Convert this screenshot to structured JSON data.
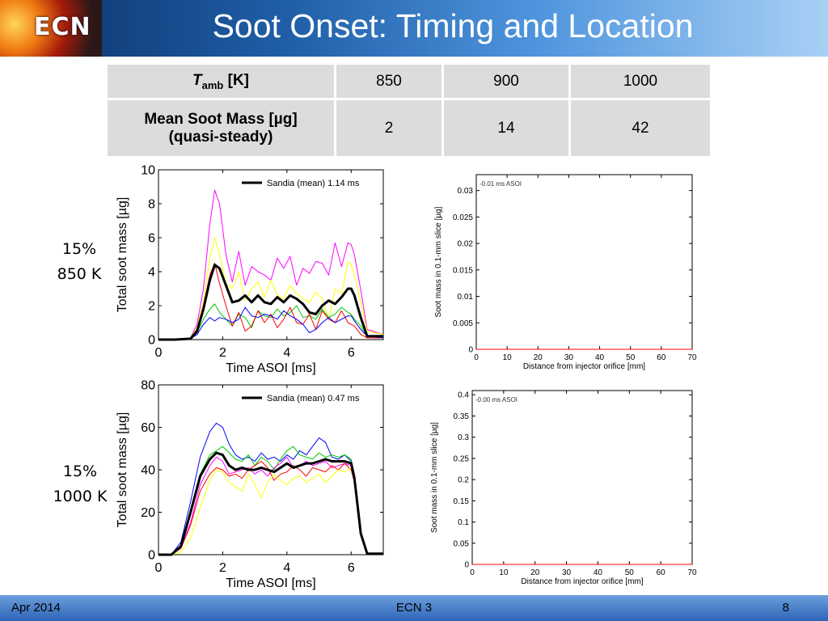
{
  "header": {
    "title": "Soot Onset: Timing and Location",
    "logo_text": "ECN"
  },
  "table": {
    "row1": {
      "label_main": "T",
      "label_sub": "amb",
      "label_unit": " [K]",
      "values": [
        "850",
        "900",
        "1000"
      ]
    },
    "row2": {
      "label_line1": "Mean Soot Mass [µg]",
      "label_line2": "(quasi-steady)",
      "values": [
        "2",
        "14",
        "42"
      ]
    }
  },
  "row_labels": [
    {
      "line1": "15%",
      "line2": "850 K"
    },
    {
      "line1": "15%",
      "line2": "1000 K"
    }
  ],
  "footer": {
    "left": "Apr 2014",
    "center": "ECN 3",
    "right": "8"
  },
  "chart_data": [
    {
      "type": "line",
      "xlabel": "Time ASOI [ms]",
      "ylabel": "Total soot mass [µg]",
      "xlim": [
        0,
        7
      ],
      "ylim": [
        0,
        10
      ],
      "xticks": [
        0,
        2,
        4,
        6
      ],
      "yticks": [
        0,
        2,
        4,
        6,
        8,
        10
      ],
      "legend": "top-right",
      "series": [
        {
          "name": "Sandia (mean) 1.14 ms",
          "color": "#000000",
          "width": 3,
          "x": [
            0,
            0.5,
            1.0,
            1.2,
            1.4,
            1.6,
            1.75,
            1.9,
            2.1,
            2.3,
            2.5,
            2.7,
            2.9,
            3.1,
            3.3,
            3.5,
            3.7,
            3.9,
            4.1,
            4.3,
            4.5,
            4.7,
            4.9,
            5.1,
            5.3,
            5.5,
            5.7,
            5.9,
            6.0,
            6.1,
            6.3,
            6.5,
            7.0
          ],
          "y": [
            0,
            0,
            0.05,
            0.5,
            1.8,
            3.5,
            4.4,
            4.2,
            3.2,
            2.2,
            2.3,
            2.6,
            2.2,
            2.6,
            2.2,
            2.1,
            2.5,
            2.2,
            2.6,
            2.4,
            2.1,
            1.6,
            1.5,
            2.0,
            2.3,
            2.1,
            2.5,
            3.0,
            3.0,
            2.6,
            1.3,
            0.2,
            0.2
          ]
        },
        {
          "color": "#ff00ff",
          "width": 1,
          "x": [
            0,
            0.5,
            1.0,
            1.2,
            1.4,
            1.6,
            1.75,
            1.9,
            2.1,
            2.3,
            2.5,
            2.7,
            2.9,
            3.1,
            3.3,
            3.5,
            3.7,
            3.9,
            4.1,
            4.3,
            4.5,
            4.7,
            4.9,
            5.1,
            5.3,
            5.5,
            5.7,
            5.9,
            6.0,
            6.1,
            6.3,
            6.5,
            7.0
          ],
          "y": [
            0,
            0,
            0.1,
            0.9,
            3.0,
            6.8,
            8.8,
            8.0,
            5.0,
            3.4,
            5.2,
            3.2,
            4.3,
            4.0,
            3.8,
            3.5,
            4.8,
            4.2,
            4.9,
            3.2,
            4.2,
            3.9,
            4.6,
            4.5,
            3.8,
            5.7,
            4.3,
            5.7,
            5.6,
            5.0,
            2.9,
            0.6,
            0.3
          ]
        },
        {
          "color": "#ffff00",
          "width": 1,
          "x": [
            0,
            0.5,
            1.0,
            1.2,
            1.4,
            1.6,
            1.75,
            1.9,
            2.1,
            2.3,
            2.5,
            2.7,
            2.9,
            3.1,
            3.3,
            3.5,
            3.7,
            3.9,
            4.1,
            4.3,
            4.5,
            4.7,
            4.9,
            5.1,
            5.3,
            5.5,
            5.7,
            5.9,
            6.0,
            6.1,
            6.3,
            6.5,
            7.0
          ],
          "y": [
            0,
            0,
            0.1,
            0.7,
            2.2,
            4.8,
            6.0,
            5.0,
            3.3,
            3.0,
            4.0,
            2.3,
            3.0,
            3.4,
            2.5,
            3.5,
            2.6,
            2.4,
            3.2,
            2.7,
            2.4,
            2.2,
            2.8,
            2.4,
            1.2,
            3.0,
            2.7,
            4.6,
            4.4,
            3.8,
            2.2,
            0.5,
            0.3
          ]
        },
        {
          "color": "#00cc00",
          "width": 1,
          "x": [
            0,
            0.5,
            1.0,
            1.2,
            1.4,
            1.6,
            1.75,
            1.9,
            2.1,
            2.3,
            2.5,
            2.7,
            2.9,
            3.1,
            3.3,
            3.5,
            3.7,
            3.9,
            4.1,
            4.3,
            4.5,
            4.7,
            4.9,
            5.1,
            5.3,
            5.5,
            5.7,
            5.9,
            6.0,
            6.1,
            6.3,
            6.5,
            7.0
          ],
          "y": [
            0,
            0,
            0.05,
            0.4,
            1.2,
            1.8,
            2.1,
            1.6,
            1.2,
            0.8,
            1.5,
            1.3,
            0.7,
            1.7,
            1.4,
            1.3,
            1.8,
            1.4,
            1.6,
            2.0,
            1.3,
            1.4,
            1.2,
            1.8,
            1.3,
            1.5,
            1.9,
            1.6,
            1.5,
            1.2,
            0.8,
            0.2,
            0.2
          ]
        },
        {
          "color": "#ff0000",
          "width": 1,
          "x": [
            0,
            0.5,
            1.0,
            1.2,
            1.4,
            1.6,
            1.75,
            1.9,
            2.1,
            2.3,
            2.5,
            2.7,
            2.9,
            3.1,
            3.3,
            3.5,
            3.7,
            3.9,
            4.1,
            4.3,
            4.5,
            4.7,
            4.9,
            5.1,
            5.3,
            5.5,
            5.7,
            5.9,
            6.0,
            6.1,
            6.3,
            6.5,
            7.0
          ],
          "y": [
            0,
            0,
            0.05,
            0.6,
            2.0,
            3.8,
            4.5,
            3.3,
            2.0,
            0.8,
            1.6,
            0.5,
            0.8,
            1.7,
            1.0,
            1.5,
            0.7,
            1.2,
            1.9,
            1.0,
            0.9,
            1.5,
            0.6,
            1.7,
            1.2,
            1.0,
            1.7,
            1.0,
            0.9,
            0.8,
            0.3,
            0.1,
            0.1
          ]
        },
        {
          "color": "#0000ff",
          "width": 1,
          "x": [
            0,
            0.5,
            1.0,
            1.2,
            1.4,
            1.6,
            1.75,
            1.9,
            2.1,
            2.3,
            2.5,
            2.7,
            2.9,
            3.1,
            3.3,
            3.5,
            3.7,
            3.9,
            4.1,
            4.3,
            4.5,
            4.7,
            4.9,
            5.1,
            5.3,
            5.5,
            5.7,
            5.9,
            6.0,
            6.1,
            6.3,
            6.5,
            7.0
          ],
          "y": [
            0,
            0,
            0.05,
            0.3,
            0.9,
            1.3,
            1.1,
            1.3,
            1.2,
            1.0,
            1.2,
            1.9,
            1.4,
            1.3,
            1.5,
            1.4,
            1.2,
            1.7,
            1.4,
            1.2,
            0.9,
            0.4,
            0.6,
            1.0,
            1.3,
            1.0,
            1.2,
            1.4,
            1.4,
            1.1,
            0.6,
            0.2,
            0.1
          ]
        }
      ]
    },
    {
      "type": "line",
      "xlabel": "Distance from injector orifice [mm]",
      "ylabel": "Soot mass in 0.1-mm slice [µg]",
      "xlim": [
        0,
        70
      ],
      "ylim": [
        0,
        0.033
      ],
      "xticks": [
        0,
        10,
        20,
        30,
        40,
        50,
        60,
        70
      ],
      "yticks": [
        0,
        0.005,
        0.01,
        0.015,
        0.02,
        0.025,
        0.03
      ],
      "ytick_labels": [
        "0",
        "0.005",
        "0.01",
        "0.015",
        "0.02",
        "0.025",
        "0.03"
      ],
      "annotation": "-0.01 ms ASOI",
      "series": [
        {
          "color": "#ff0000",
          "width": 1,
          "x": [
            0,
            70
          ],
          "y": [
            0,
            0
          ]
        }
      ]
    },
    {
      "type": "line",
      "xlabel": "Time ASOI [ms]",
      "ylabel": "Total soot mass [µg]",
      "xlim": [
        0,
        7
      ],
      "ylim": [
        0,
        80
      ],
      "xticks": [
        0,
        2,
        4,
        6
      ],
      "yticks": [
        0,
        20,
        40,
        60,
        80
      ],
      "legend": "top-right",
      "series": [
        {
          "name": "Sandia (mean) 0.47 ms",
          "color": "#000000",
          "width": 3,
          "x": [
            0,
            0.4,
            0.7,
            1.0,
            1.3,
            1.6,
            1.8,
            2.0,
            2.2,
            2.4,
            2.6,
            2.8,
            3.0,
            3.2,
            3.4,
            3.6,
            3.8,
            4.0,
            4.2,
            4.4,
            4.6,
            4.8,
            5.0,
            5.2,
            5.4,
            5.6,
            5.8,
            6.0,
            6.1,
            6.3,
            6.5,
            7.0
          ],
          "y": [
            0,
            0,
            4,
            20,
            37,
            45,
            48,
            47,
            42,
            40,
            41,
            40,
            40,
            41,
            40,
            39,
            41,
            43,
            41,
            42,
            43,
            43,
            44,
            45,
            44,
            44,
            44,
            43,
            36,
            10,
            0.5,
            0.5
          ]
        },
        {
          "color": "#0000ff",
          "width": 1,
          "x": [
            0,
            0.4,
            0.7,
            1.0,
            1.3,
            1.6,
            1.8,
            2.0,
            2.2,
            2.4,
            2.6,
            2.8,
            3.0,
            3.2,
            3.4,
            3.6,
            3.8,
            4.0,
            4.2,
            4.4,
            4.6,
            4.8,
            5.0,
            5.2,
            5.4,
            5.6,
            5.8,
            6.0,
            6.1,
            6.3,
            6.5,
            7.0
          ],
          "y": [
            0,
            0,
            6,
            25,
            46,
            58,
            62,
            60,
            52,
            47,
            45,
            46,
            44,
            48,
            45,
            46,
            44,
            47,
            45,
            49,
            47,
            51,
            55,
            53,
            46,
            45,
            47,
            44,
            38,
            11,
            0.5,
            0.5
          ]
        },
        {
          "color": "#00cc00",
          "width": 1,
          "x": [
            0,
            0.4,
            0.7,
            1.0,
            1.3,
            1.6,
            1.8,
            2.0,
            2.2,
            2.4,
            2.6,
            2.8,
            3.0,
            3.2,
            3.4,
            3.6,
            3.8,
            4.0,
            4.2,
            4.4,
            4.6,
            4.8,
            5.0,
            5.2,
            5.4,
            5.6,
            5.8,
            6.0,
            6.1,
            6.3,
            6.5,
            7.0
          ],
          "y": [
            0,
            0,
            4,
            20,
            38,
            47,
            49,
            51,
            48,
            45,
            44,
            47,
            42,
            46,
            44,
            40,
            45,
            49,
            51,
            47,
            46,
            45,
            48,
            46,
            47,
            46,
            47,
            45,
            38,
            10,
            0.5,
            0.5
          ]
        },
        {
          "color": "#ff00ff",
          "width": 1,
          "x": [
            0,
            0.4,
            0.7,
            1.0,
            1.3,
            1.6,
            1.8,
            2.0,
            2.2,
            2.4,
            2.6,
            2.8,
            3.0,
            3.2,
            3.4,
            3.6,
            3.8,
            4.0,
            4.2,
            4.4,
            4.6,
            4.8,
            5.0,
            5.2,
            5.4,
            5.6,
            5.8,
            6.0,
            6.1,
            6.3,
            6.5,
            7.0
          ],
          "y": [
            0,
            0,
            3,
            15,
            33,
            42,
            46,
            44,
            38,
            39,
            40,
            41,
            38,
            40,
            37,
            41,
            43,
            46,
            41,
            42,
            44,
            42,
            43,
            44,
            41,
            42,
            43,
            42,
            36,
            9,
            0.5,
            0.5
          ]
        },
        {
          "color": "#ff0000",
          "width": 1,
          "x": [
            0,
            0.4,
            0.7,
            1.0,
            1.3,
            1.6,
            1.8,
            2.0,
            2.2,
            2.4,
            2.6,
            2.8,
            3.0,
            3.2,
            3.4,
            3.6,
            3.8,
            4.0,
            4.2,
            4.4,
            4.6,
            4.8,
            5.0,
            5.2,
            5.4,
            5.6,
            5.8,
            6.0,
            6.1,
            6.3,
            6.5,
            7.0
          ],
          "y": [
            0,
            0,
            3,
            14,
            30,
            38,
            41,
            40,
            37,
            38,
            36,
            40,
            42,
            44,
            41,
            35,
            38,
            39,
            42,
            40,
            37,
            41,
            40,
            39,
            42,
            40,
            43,
            40,
            34,
            9,
            0.5,
            0.5
          ]
        },
        {
          "color": "#ffff00",
          "width": 1,
          "x": [
            0,
            0.4,
            0.7,
            1.0,
            1.3,
            1.6,
            1.8,
            2.0,
            2.2,
            2.4,
            2.6,
            2.8,
            3.0,
            3.2,
            3.4,
            3.6,
            3.8,
            4.0,
            4.2,
            4.4,
            4.6,
            4.8,
            5.0,
            5.2,
            5.4,
            5.6,
            5.8,
            6.0,
            6.1,
            6.3,
            6.5,
            7.0
          ],
          "y": [
            0,
            0,
            1,
            8,
            22,
            35,
            40,
            39,
            34,
            32,
            30,
            38,
            33,
            27,
            34,
            38,
            35,
            33,
            36,
            37,
            34,
            36,
            38,
            34,
            37,
            40,
            39,
            41,
            36,
            9,
            0.5,
            0.5
          ]
        }
      ]
    },
    {
      "type": "line",
      "xlabel": "Distance from injector orifice [mm]",
      "ylabel": "Soot mass in 0.1-mm slice [µg]",
      "xlim": [
        0,
        70
      ],
      "ylim": [
        0,
        0.41
      ],
      "xticks": [
        0,
        10,
        20,
        30,
        40,
        50,
        60,
        70
      ],
      "yticks": [
        0,
        0.05,
        0.1,
        0.15,
        0.2,
        0.25,
        0.3,
        0.35,
        0.4
      ],
      "ytick_labels": [
        "0",
        "0.05",
        "0.1",
        "0.15",
        "0.2",
        "0.25",
        "0.3",
        "0.35",
        "0.4"
      ],
      "annotation": "-0.00 ms ASOI",
      "series": [
        {
          "color": "#ff0000",
          "width": 1,
          "x": [
            0,
            70
          ],
          "y": [
            0,
            0
          ]
        }
      ]
    }
  ]
}
